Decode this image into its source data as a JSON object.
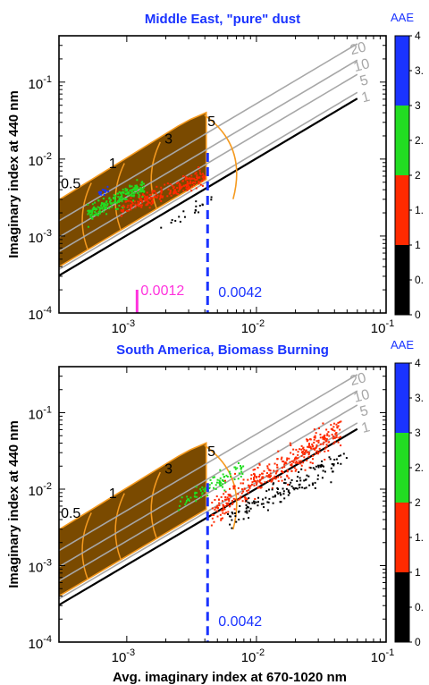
{
  "chart_data": [
    {
      "type": "scatter",
      "title": "Middle East, \"pure\" dust",
      "xlabel": "",
      "ylabel": "Imaginary index at 440 nm",
      "xscale": "log",
      "yscale": "log",
      "xlim": [
        0.0003,
        0.1
      ],
      "ylim": [
        0.0001,
        0.4
      ],
      "x_tick_labels": [
        "10^-3",
        "10^-2",
        "10^-1"
      ],
      "y_tick_labels": [
        "10^-4",
        "10^-3",
        "10^-2",
        "10^-1"
      ],
      "colorbar": {
        "title": "AAE",
        "range": [
          0,
          4
        ],
        "tick_labels": [
          "0",
          "0.",
          "1",
          "1.",
          "2",
          "2.",
          "3",
          "3.",
          "4"
        ],
        "bands": [
          {
            "from": 0,
            "to": 1,
            "color": "#000000"
          },
          {
            "from": 1,
            "to": 2,
            "color": "#ff2a00"
          },
          {
            "from": 2,
            "to": 3,
            "color": "#22dd22"
          },
          {
            "from": 3,
            "to": 4,
            "color": "#1a33ff"
          }
        ]
      },
      "reference_line_labels": [
        "20",
        "10",
        "5",
        "1"
      ],
      "region_labels": [
        "0.5",
        "1",
        "3",
        "5"
      ],
      "vertical_markers": [
        {
          "x": 0.0042,
          "label": "0.0042",
          "color": "#1a33ff"
        },
        {
          "x": 0.0012,
          "label": "0.0012",
          "color": "#ff33dd"
        }
      ],
      "clusters": [
        {
          "aae_class": "1-2 (red)",
          "x_range": [
            0.0009,
            0.004
          ],
          "y_range": [
            0.0022,
            0.006
          ],
          "approx_points": 420
        },
        {
          "aae_class": "2-3 (green)",
          "x_range": [
            0.0005,
            0.0014
          ],
          "y_range": [
            0.0019,
            0.0045
          ],
          "approx_points": 380
        },
        {
          "aae_class": "3-4 (blue)",
          "x_range": [
            0.0006,
            0.0008
          ],
          "y_range": [
            0.0035,
            0.0045
          ],
          "approx_points": 25
        },
        {
          "aae_class": "0-1 (black)",
          "x_range": [
            0.0018,
            0.0045
          ],
          "y_range": [
            0.0012,
            0.003
          ],
          "approx_points": 35
        }
      ]
    },
    {
      "type": "scatter",
      "title": "South America, Biomass Burning",
      "xlabel": "Avg. imaginary index at 670-1020 nm",
      "ylabel": "Imaginary index at 440 nm",
      "xscale": "log",
      "yscale": "log",
      "xlim": [
        0.0003,
        0.1
      ],
      "ylim": [
        0.0001,
        0.4
      ],
      "x_tick_labels": [
        "10^-3",
        "10^-2",
        "10^-1"
      ],
      "y_tick_labels": [
        "10^-4",
        "10^-3",
        "10^-2",
        "10^-1"
      ],
      "colorbar": {
        "title": "AAE",
        "range": [
          0,
          4
        ],
        "tick_labels": [
          "0",
          "0.",
          "1",
          "1.",
          "2",
          "2.",
          "3",
          "3.",
          "4"
        ],
        "bands": [
          {
            "from": 0,
            "to": 1,
            "color": "#000000"
          },
          {
            "from": 1,
            "to": 2,
            "color": "#ff2a00"
          },
          {
            "from": 2,
            "to": 3,
            "color": "#22dd22"
          },
          {
            "from": 3,
            "to": 4,
            "color": "#1a33ff"
          }
        ]
      },
      "reference_line_labels": [
        "20",
        "10",
        "5",
        "1"
      ],
      "region_labels": [
        "0.5",
        "1",
        "3",
        "5"
      ],
      "vertical_markers": [
        {
          "x": 0.0042,
          "label": "0.0042",
          "color": "#1a33ff"
        }
      ],
      "clusters": [
        {
          "aae_class": "1-2 (red)",
          "x_range": [
            0.0045,
            0.045
          ],
          "y_range": [
            0.005,
            0.06
          ],
          "approx_points": 700
        },
        {
          "aae_class": "2-3 (green)",
          "x_range": [
            0.0025,
            0.008
          ],
          "y_range": [
            0.006,
            0.02
          ],
          "approx_points": 160
        },
        {
          "aae_class": "0-1 (black)",
          "x_range": [
            0.006,
            0.05
          ],
          "y_range": [
            0.004,
            0.025
          ],
          "approx_points": 260
        }
      ]
    }
  ]
}
